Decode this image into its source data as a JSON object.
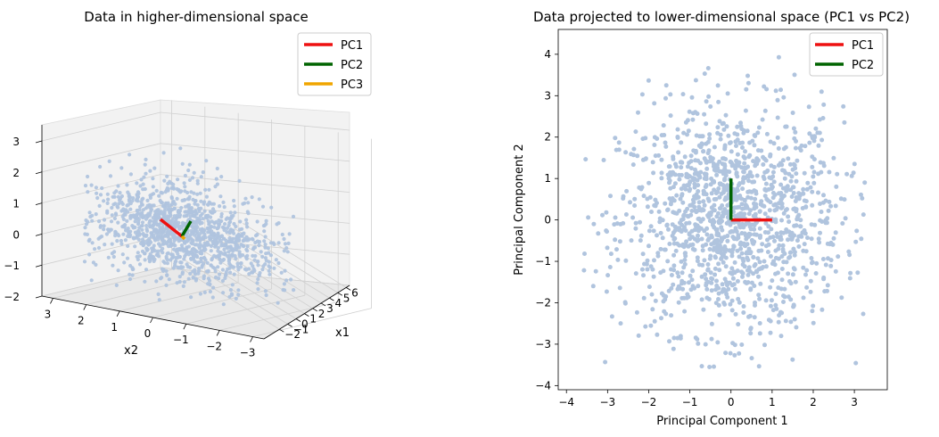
{
  "chart_data": [
    {
      "type": "scatter",
      "projection": "3d",
      "title": "Data in higher-dimensional space",
      "xlabel": "x1",
      "ylabel": "x2",
      "zlabel": "",
      "x_ticks": [
        "−2",
        "−1",
        "0",
        "1",
        "2",
        "3",
        "4",
        "5",
        "6"
      ],
      "y_ticks": [
        "3",
        "2",
        "1",
        "0",
        "−1",
        "−2",
        "−3"
      ],
      "z_ticks": [
        "3",
        "2",
        "1",
        "0",
        "−1",
        "−2"
      ],
      "xlim": [
        -2,
        6
      ],
      "ylim": [
        -3,
        3
      ],
      "zlim": [
        -2,
        3
      ],
      "grid": true,
      "legend_position": "top-right",
      "point_color": "#b0c4de",
      "series": [
        {
          "name": "PC1",
          "color": "#ee1111"
        },
        {
          "name": "PC2",
          "color": "#006400"
        },
        {
          "name": "PC3",
          "color": "#f0a500"
        }
      ]
    },
    {
      "type": "scatter",
      "title": "Data projected to lower-dimensional space (PC1 vs PC2)",
      "xlabel": "Principal Component 1",
      "ylabel": "Principal Component 2",
      "x_ticks": [
        -4,
        -3,
        -2,
        -1,
        0,
        1,
        2,
        3
      ],
      "y_ticks": [
        4,
        3,
        2,
        1,
        0,
        -1,
        -2,
        -3,
        -4
      ],
      "xlim": [
        -4.2,
        3.8
      ],
      "ylim": [
        -4.1,
        4.6
      ],
      "grid": false,
      "legend_position": "top-right",
      "point_color": "#b0c4de",
      "points_note_range": {
        "x": [
          -3.8,
          3.5
        ],
        "y": [
          -3.7,
          4.2
        ]
      },
      "series": [
        {
          "name": "PC1",
          "color": "#ee1111",
          "x": [
            0,
            1
          ],
          "y": [
            0,
            0
          ]
        },
        {
          "name": "PC2",
          "color": "#006400",
          "x": [
            0,
            0
          ],
          "y": [
            0,
            1
          ]
        }
      ]
    }
  ]
}
